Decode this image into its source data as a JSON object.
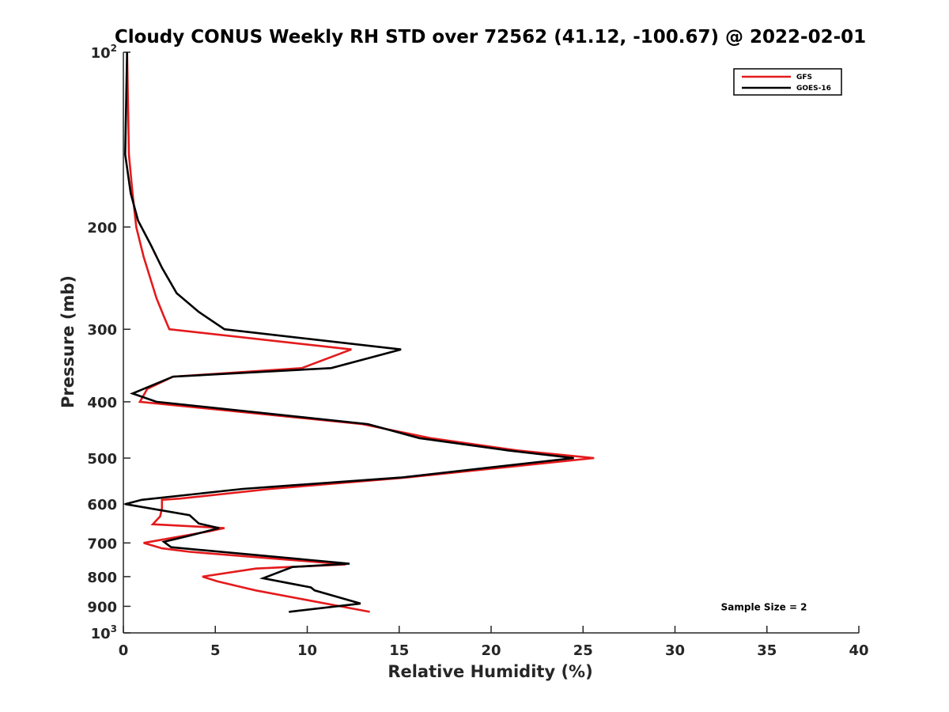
{
  "chart_data": {
    "type": "line",
    "title": "Cloudy CONUS Weekly RH STD over 72562 (41.12, -100.67) @ 2022-02-01",
    "xlabel": "Relative Humidity (%)",
    "ylabel": "Pressure (mb)",
    "xlim": [
      0,
      40
    ],
    "ylim": [
      100,
      1000
    ],
    "y_scale": "log",
    "y_reversed": true,
    "grid": false,
    "legend_position": "top-right",
    "x_ticks": [
      "0",
      "5",
      "10",
      "15",
      "20",
      "25",
      "30",
      "35",
      "40"
    ],
    "y_ticks": [
      {
        "value": 100,
        "base": "10",
        "exp": "2"
      },
      {
        "value": 200,
        "label": "200"
      },
      {
        "value": 300,
        "label": "300"
      },
      {
        "value": 400,
        "label": "400"
      },
      {
        "value": 500,
        "label": "500"
      },
      {
        "value": 600,
        "label": "600"
      },
      {
        "value": 700,
        "label": "700"
      },
      {
        "value": 800,
        "label": "800"
      },
      {
        "value": 900,
        "label": "900"
      },
      {
        "value": 1000,
        "base": "10",
        "exp": "3"
      }
    ],
    "series": [
      {
        "name": "GFS",
        "color": "#e41a1c",
        "points": [
          [
            0.2,
            100
          ],
          [
            0.3,
            150
          ],
          [
            0.5,
            175
          ],
          [
            0.7,
            200
          ],
          [
            1.1,
            225
          ],
          [
            1.8,
            265
          ],
          [
            2.2,
            285
          ],
          [
            2.5,
            300
          ],
          [
            12.4,
            325
          ],
          [
            9.7,
            350
          ],
          [
            2.7,
            362
          ],
          [
            1.3,
            380
          ],
          [
            0.9,
            400
          ],
          [
            13.0,
            437
          ],
          [
            16.7,
            462
          ],
          [
            21.4,
            485
          ],
          [
            25.6,
            500
          ],
          [
            15.4,
            540
          ],
          [
            8.0,
            565
          ],
          [
            3.1,
            587
          ],
          [
            2.1,
            590
          ],
          [
            2.1,
            610
          ],
          [
            2.0,
            630
          ],
          [
            1.6,
            650
          ],
          [
            5.5,
            660
          ],
          [
            4.5,
            670
          ],
          [
            1.1,
            700
          ],
          [
            2.1,
            715
          ],
          [
            3.6,
            725
          ],
          [
            12.1,
            762
          ],
          [
            7.2,
            775
          ],
          [
            4.3,
            800
          ],
          [
            5.1,
            815
          ],
          [
            6.5,
            835
          ],
          [
            7.2,
            845
          ],
          [
            13.4,
            920
          ]
        ]
      },
      {
        "name": "GOES-16",
        "color": "#000000",
        "points": [
          [
            0.2,
            100
          ],
          [
            0.1,
            150
          ],
          [
            0.4,
            175
          ],
          [
            0.8,
            195
          ],
          [
            1.5,
            215
          ],
          [
            2.1,
            235
          ],
          [
            2.9,
            260
          ],
          [
            4.1,
            280
          ],
          [
            5.5,
            300
          ],
          [
            15.1,
            325
          ],
          [
            11.3,
            350
          ],
          [
            2.7,
            362
          ],
          [
            0.5,
            387
          ],
          [
            1.8,
            400
          ],
          [
            13.3,
            437
          ],
          [
            16.1,
            462
          ],
          [
            20.9,
            485
          ],
          [
            24.5,
            500
          ],
          [
            15.1,
            540
          ],
          [
            6.5,
            565
          ],
          [
            1.0,
            590
          ],
          [
            0.1,
            600
          ],
          [
            3.6,
            627
          ],
          [
            4.1,
            648
          ],
          [
            5.2,
            660
          ],
          [
            3.6,
            680
          ],
          [
            2.2,
            697
          ],
          [
            2.6,
            712
          ],
          [
            12.3,
            760
          ],
          [
            9.2,
            770
          ],
          [
            7.6,
            805
          ],
          [
            10.2,
            835
          ],
          [
            10.4,
            845
          ],
          [
            12.9,
            890
          ],
          [
            9.0,
            920
          ]
        ]
      }
    ],
    "annotations": [
      {
        "text": "Sample Size = 2",
        "x": 32.5,
        "y": 900
      }
    ]
  }
}
